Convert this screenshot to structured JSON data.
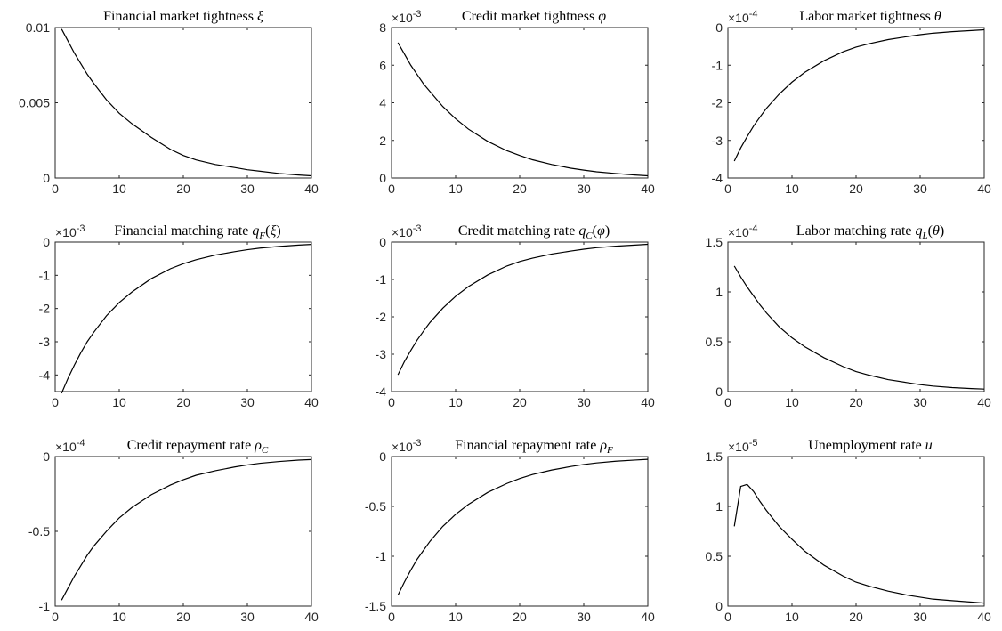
{
  "chart_data": [
    {
      "type": "line",
      "title_parts": [
        {
          "t": "Financial market tightness "
        },
        {
          "t": "ξ",
          "it": true
        }
      ],
      "exponent_label": "",
      "xlim": [
        0,
        40
      ],
      "ylim": [
        0,
        0.01
      ],
      "xticks": [
        0,
        10,
        20,
        30,
        40
      ],
      "yticks": [
        0,
        0.005,
        0.01
      ],
      "xtick_labels": [
        "0",
        "10",
        "20",
        "30",
        "40"
      ],
      "ytick_labels": [
        "0",
        "0.005",
        "0.01"
      ],
      "series": [
        {
          "x": [
            1,
            2,
            3,
            4,
            5,
            6,
            8,
            10,
            12,
            15,
            18,
            20,
            22,
            25,
            28,
            30,
            32,
            35,
            38,
            40
          ],
          "y": [
            0.0099,
            0.0091,
            0.0083,
            0.0076,
            0.0069,
            0.0063,
            0.0052,
            0.0043,
            0.0036,
            0.0027,
            0.0019,
            0.0015,
            0.0012,
            0.0009,
            0.0007,
            0.00055,
            0.00045,
            0.0003,
            0.0002,
            0.00015
          ]
        }
      ]
    },
    {
      "type": "line",
      "title_parts": [
        {
          "t": "Credit market tightness "
        },
        {
          "t": "φ",
          "it": true
        }
      ],
      "exponent_label": "×10-3",
      "xlim": [
        0,
        40
      ],
      "ylim": [
        0,
        8
      ],
      "xticks": [
        0,
        10,
        20,
        30,
        40
      ],
      "yticks": [
        0,
        2,
        4,
        6,
        8
      ],
      "xtick_labels": [
        "0",
        "10",
        "20",
        "30",
        "40"
      ],
      "ytick_labels": [
        "0",
        "2",
        "4",
        "6",
        "8"
      ],
      "series": [
        {
          "x": [
            1,
            2,
            3,
            4,
            5,
            6,
            8,
            10,
            12,
            15,
            18,
            20,
            22,
            25,
            28,
            30,
            32,
            35,
            38,
            40
          ],
          "y": [
            7.2,
            6.6,
            6.0,
            5.5,
            5.0,
            4.6,
            3.8,
            3.15,
            2.6,
            1.95,
            1.45,
            1.2,
            0.97,
            0.72,
            0.52,
            0.42,
            0.33,
            0.24,
            0.16,
            0.12
          ]
        }
      ]
    },
    {
      "type": "line",
      "title_parts": [
        {
          "t": "Labor market tightness "
        },
        {
          "t": "θ",
          "it": true
        }
      ],
      "exponent_label": "×10-4",
      "xlim": [
        0,
        40
      ],
      "ylim": [
        -4,
        0
      ],
      "xticks": [
        0,
        10,
        20,
        30,
        40
      ],
      "yticks": [
        -4,
        -3,
        -2,
        -1,
        0
      ],
      "xtick_labels": [
        "0",
        "10",
        "20",
        "30",
        "40"
      ],
      "ytick_labels": [
        "-4",
        "-3",
        "-2",
        "-1",
        "0"
      ],
      "series": [
        {
          "x": [
            1,
            2,
            3,
            4,
            5,
            6,
            8,
            10,
            12,
            15,
            18,
            20,
            22,
            25,
            28,
            30,
            32,
            35,
            38,
            40
          ],
          "y": [
            -3.55,
            -3.2,
            -2.9,
            -2.62,
            -2.38,
            -2.15,
            -1.77,
            -1.45,
            -1.19,
            -0.88,
            -0.64,
            -0.52,
            -0.43,
            -0.32,
            -0.24,
            -0.19,
            -0.15,
            -0.11,
            -0.08,
            -0.06
          ]
        }
      ]
    },
    {
      "type": "line",
      "title_parts": [
        {
          "t": "Financial matching rate "
        },
        {
          "t": "q",
          "it": true
        },
        {
          "t": "F",
          "it": true,
          "sub": true
        },
        {
          "t": "("
        },
        {
          "t": "ξ",
          "it": true
        },
        {
          "t": ")"
        }
      ],
      "exponent_label": "×10-3",
      "xlim": [
        0,
        40
      ],
      "ylim": [
        -4.5,
        0
      ],
      "xticks": [
        0,
        10,
        20,
        30,
        40
      ],
      "yticks": [
        -4,
        -3,
        -2,
        -1,
        0
      ],
      "xtick_labels": [
        "0",
        "10",
        "20",
        "30",
        "40"
      ],
      "ytick_labels": [
        "-4",
        "-3",
        "-2",
        "-1",
        "0"
      ],
      "series": [
        {
          "x": [
            1,
            2,
            3,
            4,
            5,
            6,
            8,
            10,
            12,
            15,
            18,
            20,
            22,
            25,
            28,
            30,
            32,
            35,
            38,
            40
          ],
          "y": [
            -4.55,
            -4.1,
            -3.7,
            -3.33,
            -3.0,
            -2.72,
            -2.22,
            -1.82,
            -1.5,
            -1.1,
            -0.8,
            -0.65,
            -0.53,
            -0.39,
            -0.29,
            -0.23,
            -0.18,
            -0.13,
            -0.09,
            -0.07
          ]
        }
      ]
    },
    {
      "type": "line",
      "title_parts": [
        {
          "t": "Credit matching rate "
        },
        {
          "t": "q",
          "it": true
        },
        {
          "t": "C",
          "it": true,
          "sub": true
        },
        {
          "t": "("
        },
        {
          "t": "φ",
          "it": true
        },
        {
          "t": ")"
        }
      ],
      "exponent_label": "×10-3",
      "xlim": [
        0,
        40
      ],
      "ylim": [
        -4,
        0
      ],
      "xticks": [
        0,
        10,
        20,
        30,
        40
      ],
      "yticks": [
        -4,
        -3,
        -2,
        -1,
        0
      ],
      "xtick_labels": [
        "0",
        "10",
        "20",
        "30",
        "40"
      ],
      "ytick_labels": [
        "-4",
        "-3",
        "-2",
        "-1",
        "0"
      ],
      "series": [
        {
          "x": [
            1,
            2,
            3,
            4,
            5,
            6,
            8,
            10,
            12,
            15,
            18,
            20,
            22,
            25,
            28,
            30,
            32,
            35,
            38,
            40
          ],
          "y": [
            -3.55,
            -3.2,
            -2.9,
            -2.62,
            -2.38,
            -2.15,
            -1.77,
            -1.45,
            -1.19,
            -0.88,
            -0.64,
            -0.52,
            -0.43,
            -0.32,
            -0.24,
            -0.19,
            -0.15,
            -0.11,
            -0.08,
            -0.06
          ]
        }
      ]
    },
    {
      "type": "line",
      "title_parts": [
        {
          "t": "Labor matching rate "
        },
        {
          "t": "q",
          "it": true
        },
        {
          "t": "L",
          "it": true,
          "sub": true
        },
        {
          "t": "("
        },
        {
          "t": "θ",
          "it": true
        },
        {
          "t": ")"
        }
      ],
      "exponent_label": "×10-4",
      "xlim": [
        0,
        40
      ],
      "ylim": [
        0,
        1.5
      ],
      "xticks": [
        0,
        10,
        20,
        30,
        40
      ],
      "yticks": [
        0,
        0.5,
        1,
        1.5
      ],
      "xtick_labels": [
        "0",
        "10",
        "20",
        "30",
        "40"
      ],
      "ytick_labels": [
        "0",
        "0.5",
        "1",
        "1.5"
      ],
      "series": [
        {
          "x": [
            1,
            2,
            3,
            4,
            5,
            6,
            8,
            10,
            12,
            15,
            18,
            20,
            22,
            25,
            28,
            30,
            32,
            35,
            38,
            40
          ],
          "y": [
            1.26,
            1.15,
            1.05,
            0.96,
            0.87,
            0.79,
            0.65,
            0.54,
            0.45,
            0.34,
            0.25,
            0.2,
            0.165,
            0.12,
            0.09,
            0.07,
            0.055,
            0.04,
            0.03,
            0.025
          ]
        }
      ]
    },
    {
      "type": "line",
      "title_parts": [
        {
          "t": "Credit repayment rate "
        },
        {
          "t": "ρ",
          "it": true
        },
        {
          "t": "C",
          "it": true,
          "sub": true
        }
      ],
      "exponent_label": "×10-4",
      "xlim": [
        0,
        40
      ],
      "ylim": [
        -1,
        0
      ],
      "xticks": [
        0,
        10,
        20,
        30,
        40
      ],
      "yticks": [
        -1,
        -0.5,
        0
      ],
      "xtick_labels": [
        "0",
        "10",
        "20",
        "30",
        "40"
      ],
      "ytick_labels": [
        "-1",
        "-0.5",
        "0"
      ],
      "series": [
        {
          "x": [
            1,
            2,
            3,
            4,
            5,
            6,
            8,
            10,
            12,
            15,
            18,
            20,
            22,
            25,
            28,
            30,
            32,
            35,
            38,
            40
          ],
          "y": [
            -0.96,
            -0.88,
            -0.8,
            -0.73,
            -0.66,
            -0.6,
            -0.5,
            -0.41,
            -0.34,
            -0.255,
            -0.19,
            -0.155,
            -0.125,
            -0.095,
            -0.07,
            -0.056,
            -0.045,
            -0.033,
            -0.024,
            -0.02
          ]
        }
      ]
    },
    {
      "type": "line",
      "title_parts": [
        {
          "t": "Financial repayment rate "
        },
        {
          "t": "ρ",
          "it": true
        },
        {
          "t": "F",
          "it": true,
          "sub": true
        }
      ],
      "exponent_label": "×10-3",
      "xlim": [
        0,
        40
      ],
      "ylim": [
        -1.5,
        0
      ],
      "xticks": [
        0,
        10,
        20,
        30,
        40
      ],
      "yticks": [
        -1.5,
        -1,
        -0.5,
        0
      ],
      "xtick_labels": [
        "0",
        "10",
        "20",
        "30",
        "40"
      ],
      "ytick_labels": [
        "-1.5",
        "-1",
        "-0.5",
        "0"
      ],
      "series": [
        {
          "x": [
            1,
            2,
            3,
            4,
            5,
            6,
            8,
            10,
            12,
            15,
            18,
            20,
            22,
            25,
            28,
            30,
            32,
            35,
            38,
            40
          ],
          "y": [
            -1.39,
            -1.26,
            -1.14,
            -1.03,
            -0.94,
            -0.85,
            -0.7,
            -0.58,
            -0.48,
            -0.36,
            -0.27,
            -0.22,
            -0.18,
            -0.135,
            -0.1,
            -0.08,
            -0.064,
            -0.047,
            -0.035,
            -0.028
          ]
        }
      ]
    },
    {
      "type": "line",
      "title_parts": [
        {
          "t": "Unemployment rate "
        },
        {
          "t": "u",
          "it": true
        }
      ],
      "exponent_label": "×10-5",
      "xlim": [
        0,
        40
      ],
      "ylim": [
        0,
        1.5
      ],
      "xticks": [
        0,
        10,
        20,
        30,
        40
      ],
      "yticks": [
        0,
        0.5,
        1,
        1.5
      ],
      "xtick_labels": [
        "0",
        "10",
        "20",
        "30",
        "40"
      ],
      "ytick_labels": [
        "0",
        "0.5",
        "1",
        "1.5"
      ],
      "series": [
        {
          "x": [
            1,
            2,
            3,
            4,
            5,
            6,
            8,
            10,
            12,
            15,
            18,
            20,
            22,
            25,
            28,
            30,
            32,
            35,
            38,
            40
          ],
          "y": [
            0.8,
            1.2,
            1.22,
            1.15,
            1.05,
            0.96,
            0.8,
            0.67,
            0.55,
            0.41,
            0.3,
            0.24,
            0.2,
            0.15,
            0.11,
            0.09,
            0.07,
            0.055,
            0.04,
            0.03
          ]
        }
      ]
    }
  ]
}
